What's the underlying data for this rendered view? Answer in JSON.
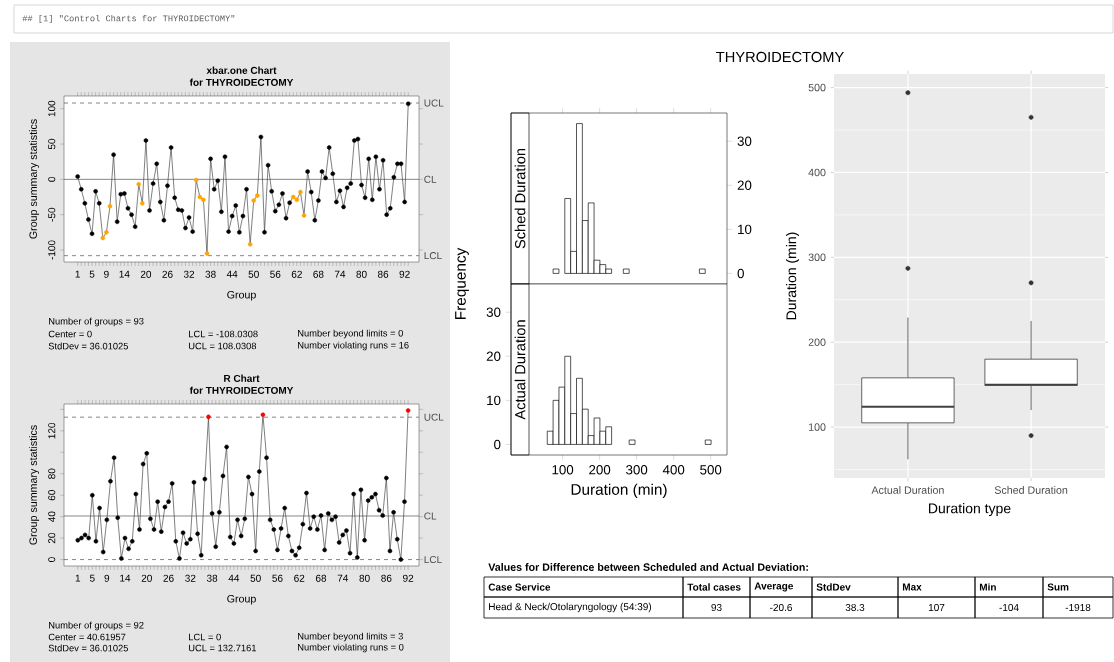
{
  "chart_data": [
    {
      "type": "other",
      "annotations": [
        "## [1] \"Control Charts for THYROIDECTOMY\""
      ]
    },
    {
      "type": "line",
      "title": "xbar.one Chart",
      "subtitle": "for THYROIDECTOMY",
      "xlabel": "Group",
      "ylabel": "Group summary statistics",
      "marker": "circle",
      "x": [
        1,
        2,
        3,
        4,
        5,
        6,
        7,
        8,
        9,
        10,
        11,
        12,
        13,
        14,
        15,
        16,
        17,
        18,
        19,
        20,
        21,
        22,
        23,
        24,
        25,
        26,
        27,
        28,
        29,
        30,
        31,
        32,
        33,
        34,
        35,
        36,
        37,
        38,
        39,
        40,
        41,
        42,
        43,
        44,
        45,
        46,
        47,
        48,
        49,
        50,
        51,
        52,
        53,
        54,
        55,
        56,
        57,
        58,
        59,
        60,
        61,
        62,
        63,
        64,
        65,
        66,
        67,
        68,
        69,
        70,
        71,
        72,
        73,
        74,
        75,
        76,
        77,
        78,
        79,
        80,
        81,
        82,
        83,
        84,
        85,
        86,
        87,
        88,
        89,
        90,
        91,
        92,
        93
      ],
      "series": [
        {
          "color": "#404040",
          "colors": [
            "#000000",
            "#000000",
            "#000000",
            "#000000",
            "#000000",
            "#000000",
            "#000000",
            "#ffa500",
            "#ffa500",
            "#ffa500",
            "#000000",
            "#000000",
            "#000000",
            "#000000",
            "#000000",
            "#000000",
            "#000000",
            "#ffa500",
            "#ffa500",
            "#000000",
            "#000000",
            "#000000",
            "#000000",
            "#000000",
            "#000000",
            "#000000",
            "#000000",
            "#000000",
            "#000000",
            "#000000",
            "#000000",
            "#000000",
            "#000000",
            "#ffa500",
            "#ffa500",
            "#ffa500",
            "#ffa500",
            "#000000",
            "#000000",
            "#000000",
            "#000000",
            "#000000",
            "#000000",
            "#000000",
            "#000000",
            "#000000",
            "#000000",
            "#000000",
            "#ffa500",
            "#ffa500",
            "#ffa500",
            "#000000",
            "#000000",
            "#000000",
            "#000000",
            "#000000",
            "#000000",
            "#000000",
            "#000000",
            "#000000",
            "#ffa500",
            "#ffa500",
            "#ffa500",
            "#ffa500",
            "#000000",
            "#000000",
            "#000000",
            "#000000",
            "#000000",
            "#000000",
            "#000000",
            "#000000",
            "#000000",
            "#000000",
            "#000000",
            "#000000",
            "#000000",
            "#000000",
            "#000000",
            "#000000",
            "#000000",
            "#000000",
            "#000000",
            "#000000",
            "#000000",
            "#000000",
            "#000000",
            "#000000",
            "#000000",
            "#000000",
            "#000000",
            "#000000",
            "#000000"
          ],
          "values": [
            4,
            -14,
            -34,
            -57,
            -77,
            -17,
            -34,
            -83,
            -75,
            -38,
            35,
            -60,
            -21,
            -20,
            -41,
            -50,
            -67,
            -7,
            -34,
            55,
            -44,
            -6,
            22,
            -32,
            -58,
            -9,
            45,
            -26,
            -43,
            -44,
            -69,
            -54,
            -74,
            -1,
            -25,
            -29,
            -105,
            29,
            -14,
            -2,
            -46,
            32,
            -74,
            -52,
            -37,
            -75,
            -52,
            -14,
            -92,
            -30,
            -23,
            60,
            -75,
            20,
            -17,
            -45,
            -36,
            -20,
            -55,
            -33,
            -25,
            -29,
            -18,
            -51,
            11,
            -18,
            -58,
            -30,
            11,
            2,
            45,
            8,
            -32,
            -16,
            -39,
            -12,
            -6,
            55,
            57,
            -8,
            -26,
            29,
            -29,
            32,
            -14,
            27,
            -50,
            -41,
            3,
            22,
            22,
            -32,
            107
          ]
        }
      ],
      "xlim": [
        -2.8,
        96
      ],
      "ylim": [
        -117,
        118
      ],
      "yticks": [
        -100,
        -50,
        0,
        50,
        100
      ],
      "xticks": [
        1,
        {
          "value": 2,
          "label": null
        },
        {
          "value": 3,
          "label": null
        },
        {
          "value": 4,
          "label": null
        },
        5,
        {
          "value": 6,
          "label": null
        },
        {
          "value": 7,
          "label": null
        },
        {
          "value": 8,
          "label": null
        },
        9,
        {
          "value": 10,
          "label": null
        },
        {
          "value": 11,
          "label": null
        },
        {
          "value": 12,
          "label": null
        },
        {
          "value": 13,
          "label": null
        },
        14,
        {
          "value": 15,
          "label": null
        },
        {
          "value": 16,
          "label": null
        },
        {
          "value": 17,
          "label": null
        },
        {
          "value": 18,
          "label": null
        },
        {
          "value": 19,
          "label": null
        },
        20,
        {
          "value": 21,
          "label": null
        },
        {
          "value": 22,
          "label": null
        },
        {
          "value": 23,
          "label": null
        },
        {
          "value": 24,
          "label": null
        },
        {
          "value": 25,
          "label": null
        },
        26,
        {
          "value": 27,
          "label": null
        },
        {
          "value": 28,
          "label": null
        },
        {
          "value": 29,
          "label": null
        },
        {
          "value": 30,
          "label": null
        },
        {
          "value": 31,
          "label": null
        },
        32,
        {
          "value": 33,
          "label": null
        },
        {
          "value": 34,
          "label": null
        },
        {
          "value": 35,
          "label": null
        },
        {
          "value": 36,
          "label": null
        },
        {
          "value": 37,
          "label": null
        },
        38,
        {
          "value": 39,
          "label": null
        },
        {
          "value": 40,
          "label": null
        },
        {
          "value": 41,
          "label": null
        },
        {
          "value": 42,
          "label": null
        },
        {
          "value": 43,
          "label": null
        },
        44,
        {
          "value": 45,
          "label": null
        },
        {
          "value": 46,
          "label": null
        },
        {
          "value": 47,
          "label": null
        },
        {
          "value": 48,
          "label": null
        },
        {
          "value": 49,
          "label": null
        },
        50,
        {
          "value": 51,
          "label": null
        },
        {
          "value": 52,
          "label": null
        },
        {
          "value": 53,
          "label": null
        },
        {
          "value": 54,
          "label": null
        },
        {
          "value": 55,
          "label": null
        },
        56,
        {
          "value": 57,
          "label": null
        },
        {
          "value": 58,
          "label": null
        },
        {
          "value": 59,
          "label": null
        },
        {
          "value": 60,
          "label": null
        },
        {
          "value": 61,
          "label": null
        },
        62,
        {
          "value": 63,
          "label": null
        },
        {
          "value": 64,
          "label": null
        },
        {
          "value": 65,
          "label": null
        },
        {
          "value": 66,
          "label": null
        },
        {
          "value": 67,
          "label": null
        },
        68,
        {
          "value": 69,
          "label": null
        },
        {
          "value": 70,
          "label": null
        },
        {
          "value": 71,
          "label": null
        },
        {
          "value": 72,
          "label": null
        },
        {
          "value": 73,
          "label": null
        },
        74,
        {
          "value": 75,
          "label": null
        },
        {
          "value": 76,
          "label": null
        },
        {
          "value": 77,
          "label": null
        },
        {
          "value": 78,
          "label": null
        },
        {
          "value": 79,
          "label": null
        },
        80,
        {
          "value": 81,
          "label": null
        },
        {
          "value": 82,
          "label": null
        },
        {
          "value": 83,
          "label": null
        },
        {
          "value": 84,
          "label": null
        },
        {
          "value": 85,
          "label": null
        },
        86,
        {
          "value": 87,
          "label": null
        },
        {
          "value": 88,
          "label": null
        },
        {
          "value": 89,
          "label": null
        },
        {
          "value": 90,
          "label": null
        },
        {
          "value": 91,
          "label": null
        },
        92,
        {
          "value": 93,
          "label": null
        }
      ],
      "ref_lines": [
        {
          "axis": "y",
          "value": 108.0308,
          "label": "UCL",
          "line_style": "dashed"
        },
        {
          "axis": "y",
          "value": 0,
          "label": "CL",
          "line_style": "solid"
        },
        {
          "axis": "y",
          "value": -108.0308,
          "label": "LCL",
          "line_style": "dashed"
        }
      ],
      "annotations": [
        "Number of groups = 93",
        "Center = 0",
        "LCL = -108.0308",
        "Number beyond limits = 0",
        "StdDev = 36.01025",
        "UCL = 108.0308",
        "Number violating runs = 16"
      ]
    },
    {
      "type": "line",
      "title": "R Chart",
      "subtitle": "for THYROIDECTOMY",
      "xlabel": "Group",
      "ylabel": "Group summary statistics",
      "marker": "circle",
      "x": [
        1,
        2,
        3,
        4,
        5,
        6,
        7,
        8,
        9,
        10,
        11,
        12,
        13,
        14,
        15,
        16,
        17,
        18,
        19,
        20,
        21,
        22,
        23,
        24,
        25,
        26,
        27,
        28,
        29,
        30,
        31,
        32,
        33,
        34,
        35,
        36,
        37,
        38,
        39,
        40,
        41,
        42,
        43,
        44,
        45,
        46,
        47,
        48,
        49,
        50,
        51,
        52,
        53,
        54,
        55,
        56,
        57,
        58,
        59,
        60,
        61,
        62,
        63,
        64,
        65,
        66,
        67,
        68,
        69,
        70,
        71,
        72,
        73,
        74,
        75,
        76,
        77,
        78,
        79,
        80,
        81,
        82,
        83,
        84,
        85,
        86,
        87,
        88,
        89,
        90,
        91,
        92
      ],
      "series": [
        {
          "color": "#404040",
          "colors": [
            "#000000",
            "#000000",
            "#000000",
            "#000000",
            "#000000",
            "#000000",
            "#000000",
            "#000000",
            "#000000",
            "#000000",
            "#000000",
            "#000000",
            "#000000",
            "#000000",
            "#000000",
            "#000000",
            "#000000",
            "#000000",
            "#000000",
            "#000000",
            "#000000",
            "#000000",
            "#000000",
            "#000000",
            "#000000",
            "#000000",
            "#000000",
            "#000000",
            "#000000",
            "#000000",
            "#000000",
            "#000000",
            "#000000",
            "#000000",
            "#000000",
            "#000000",
            "#ff0000",
            "#000000",
            "#000000",
            "#000000",
            "#000000",
            "#000000",
            "#000000",
            "#000000",
            "#000000",
            "#000000",
            "#000000",
            "#000000",
            "#000000",
            "#000000",
            "#000000",
            "#ff0000",
            "#000000",
            "#000000",
            "#000000",
            "#000000",
            "#000000",
            "#000000",
            "#000000",
            "#000000",
            "#000000",
            "#000000",
            "#000000",
            "#000000",
            "#000000",
            "#000000",
            "#000000",
            "#000000",
            "#000000",
            "#000000",
            "#000000",
            "#000000",
            "#000000",
            "#000000",
            "#000000",
            "#000000",
            "#000000",
            "#000000",
            "#000000",
            "#000000",
            "#000000",
            "#000000",
            "#000000",
            "#000000",
            "#000000",
            "#000000",
            "#000000",
            "#000000",
            "#000000",
            "#000000",
            "#000000",
            "#ff0000"
          ],
          "values": [
            18,
            20,
            23,
            20,
            60,
            17,
            48,
            7,
            37,
            73,
            95,
            39,
            1,
            20,
            10,
            17,
            61,
            28,
            89,
            99,
            38,
            28,
            54,
            26,
            49,
            54,
            71,
            17,
            1,
            25,
            15,
            19,
            72,
            24,
            4,
            75,
            133,
            43,
            12,
            44,
            78,
            105,
            21,
            15,
            37,
            22,
            38,
            77,
            61,
            8,
            82,
            135,
            95,
            37,
            28,
            9,
            29,
            48,
            22,
            8,
            4,
            11,
            33,
            62,
            29,
            40,
            28,
            41,
            9,
            43,
            37,
            40,
            16,
            23,
            27,
            6,
            61,
            2,
            65,
            18,
            55,
            58,
            61,
            46,
            41,
            76,
            8,
            44,
            19,
            0,
            54,
            139
          ]
        }
      ],
      "xlim": [
        -2.8,
        95
      ],
      "ylim": [
        -6,
        145
      ],
      "yticks": [
        0,
        20,
        40,
        60,
        80,
        {
          "value": 100,
          "label": null
        },
        120,
        {
          "value": 140,
          "label": null
        }
      ],
      "xticks": [
        1,
        {
          "value": 2,
          "label": null
        },
        {
          "value": 3,
          "label": null
        },
        {
          "value": 4,
          "label": null
        },
        5,
        {
          "value": 6,
          "label": null
        },
        {
          "value": 7,
          "label": null
        },
        {
          "value": 8,
          "label": null
        },
        9,
        {
          "value": 10,
          "label": null
        },
        {
          "value": 11,
          "label": null
        },
        {
          "value": 12,
          "label": null
        },
        {
          "value": 13,
          "label": null
        },
        14,
        {
          "value": 15,
          "label": null
        },
        {
          "value": 16,
          "label": null
        },
        {
          "value": 17,
          "label": null
        },
        {
          "value": 18,
          "label": null
        },
        {
          "value": 19,
          "label": null
        },
        20,
        {
          "value": 21,
          "label": null
        },
        {
          "value": 22,
          "label": null
        },
        {
          "value": 23,
          "label": null
        },
        {
          "value": 24,
          "label": null
        },
        {
          "value": 25,
          "label": null
        },
        26,
        {
          "value": 27,
          "label": null
        },
        {
          "value": 28,
          "label": null
        },
        {
          "value": 29,
          "label": null
        },
        {
          "value": 30,
          "label": null
        },
        {
          "value": 31,
          "label": null
        },
        32,
        {
          "value": 33,
          "label": null
        },
        {
          "value": 34,
          "label": null
        },
        {
          "value": 35,
          "label": null
        },
        {
          "value": 36,
          "label": null
        },
        {
          "value": 37,
          "label": null
        },
        38,
        {
          "value": 39,
          "label": null
        },
        {
          "value": 40,
          "label": null
        },
        {
          "value": 41,
          "label": null
        },
        {
          "value": 42,
          "label": null
        },
        {
          "value": 43,
          "label": null
        },
        44,
        {
          "value": 45,
          "label": null
        },
        {
          "value": 46,
          "label": null
        },
        {
          "value": 47,
          "label": null
        },
        {
          "value": 48,
          "label": null
        },
        {
          "value": 49,
          "label": null
        },
        50,
        {
          "value": 51,
          "label": null
        },
        {
          "value": 52,
          "label": null
        },
        {
          "value": 53,
          "label": null
        },
        {
          "value": 54,
          "label": null
        },
        {
          "value": 55,
          "label": null
        },
        56,
        {
          "value": 57,
          "label": null
        },
        {
          "value": 58,
          "label": null
        },
        {
          "value": 59,
          "label": null
        },
        {
          "value": 60,
          "label": null
        },
        {
          "value": 61,
          "label": null
        },
        62,
        {
          "value": 63,
          "label": null
        },
        {
          "value": 64,
          "label": null
        },
        {
          "value": 65,
          "label": null
        },
        {
          "value": 66,
          "label": null
        },
        {
          "value": 67,
          "label": null
        },
        68,
        {
          "value": 69,
          "label": null
        },
        {
          "value": 70,
          "label": null
        },
        {
          "value": 71,
          "label": null
        },
        {
          "value": 72,
          "label": null
        },
        {
          "value": 73,
          "label": null
        },
        74,
        {
          "value": 75,
          "label": null
        },
        {
          "value": 76,
          "label": null
        },
        {
          "value": 77,
          "label": null
        },
        {
          "value": 78,
          "label": null
        },
        {
          "value": 79,
          "label": null
        },
        80,
        {
          "value": 81,
          "label": null
        },
        {
          "value": 82,
          "label": null
        },
        {
          "value": 83,
          "label": null
        },
        {
          "value": 84,
          "label": null
        },
        {
          "value": 85,
          "label": null
        },
        86,
        {
          "value": 87,
          "label": null
        },
        {
          "value": 88,
          "label": null
        },
        {
          "value": 89,
          "label": null
        },
        {
          "value": 90,
          "label": null
        },
        {
          "value": 91,
          "label": null
        },
        92
      ],
      "ref_lines": [
        {
          "axis": "y",
          "value": 132.7161,
          "label": "UCL",
          "line_style": "dashed"
        },
        {
          "axis": "y",
          "value": 40.61957,
          "label": "CL",
          "line_style": "solid"
        },
        {
          "axis": "y",
          "value": 0,
          "label": "LCL",
          "line_style": "dashed"
        }
      ],
      "annotations": [
        "Number of groups = 92",
        "Center = 40.61957",
        "LCL = 0",
        "Number beyond limits = 3",
        "StdDev = 36.01025",
        "UCL = 132.7161",
        "Number violating runs = 0"
      ]
    },
    {
      "type": "histogram",
      "title": "Sched Duration",
      "color": "#ffffff",
      "bins": [
        58.6,
        74.4,
        90.2,
        106,
        121.8,
        137.6,
        153.4,
        169.2,
        185,
        200.8,
        216.6,
        232.4,
        248.2,
        264,
        279.8,
        295.6,
        311.4,
        327.2,
        343,
        358.8,
        374.6,
        390.4,
        406.2,
        422,
        437.8,
        453.6,
        469.4,
        485.2,
        501
      ],
      "values": [
        0,
        1,
        0,
        17,
        5,
        34,
        12,
        16,
        3,
        2,
        1,
        0,
        0,
        1,
        0,
        0,
        0,
        0,
        0,
        0,
        0,
        0,
        0,
        0,
        0,
        0,
        1,
        0
      ],
      "xlim": [
        -39.3,
        544
      ],
      "ylim": [
        -2.4,
        36.4
      ],
      "yticks": [
        0,
        10,
        20,
        30
      ],
      "xticks": [
        {
          "value": 100,
          "label": null
        },
        {
          "value": 200,
          "label": null
        },
        {
          "value": 300,
          "label": null
        },
        {
          "value": 400,
          "label": null
        },
        {
          "value": 500,
          "label": null
        }
      ],
      "tick_labels": "y"
    },
    {
      "type": "histogram",
      "title": "Actual Duration",
      "color": "#ffffff",
      "xlabel": "Duration (min)",
      "ylabel": "Frequency",
      "bins": [
        58.6,
        74.4,
        90.2,
        106,
        121.8,
        137.6,
        153.4,
        169.2,
        185,
        200.8,
        216.6,
        232.4,
        248.2,
        264,
        279.8,
        295.6,
        311.4,
        327.2,
        343,
        358.8,
        374.6,
        390.4,
        406.2,
        422,
        437.8,
        453.6,
        469.4,
        485.2,
        501
      ],
      "values": [
        3,
        10,
        13,
        20,
        7,
        15,
        8,
        2,
        6,
        3,
        4,
        0,
        0,
        0,
        1,
        0,
        0,
        0,
        0,
        0,
        0,
        0,
        0,
        0,
        0,
        0,
        0,
        1
      ],
      "xlim": [
        -39.3,
        544
      ],
      "ylim": [
        -2.4,
        36.4
      ],
      "yticks": [
        0,
        10,
        20,
        30
      ],
      "xticks": [
        100,
        200,
        300,
        400,
        500
      ]
    },
    {
      "type": "box",
      "title": "THYROIDECTOMY",
      "xlabel": "Duration type",
      "ylabel": "Duration (min)",
      "color": "#ffffff",
      "grid": true,
      "categories": [
        "Actual Duration",
        "Sched Duration"
      ],
      "boxes": [
        {
          "low": 62,
          "q1": 105,
          "median": 124,
          "q3": 158,
          "high": 229,
          "outliers": [
            287,
            494
          ]
        },
        {
          "low": 120,
          "q1": 149,
          "median": 150,
          "q3": 180,
          "high": 225,
          "outliers": [
            90,
            270,
            465
          ]
        }
      ],
      "ylim": [
        40,
        516
      ],
      "yticks": [
        100,
        200,
        300,
        400,
        500
      ]
    },
    {
      "type": "other",
      "title": "Values for Difference between Scheduled and Actual Deviation:",
      "annotations": [
        "Case Service",
        "Total cases",
        "Average",
        "StdDev",
        "Max",
        "Min",
        "Sum",
        "Head & Neck/Otolaryngology (54:39)",
        "93",
        "-20.6",
        "38.3",
        "107",
        "-104",
        "-1918"
      ]
    }
  ]
}
